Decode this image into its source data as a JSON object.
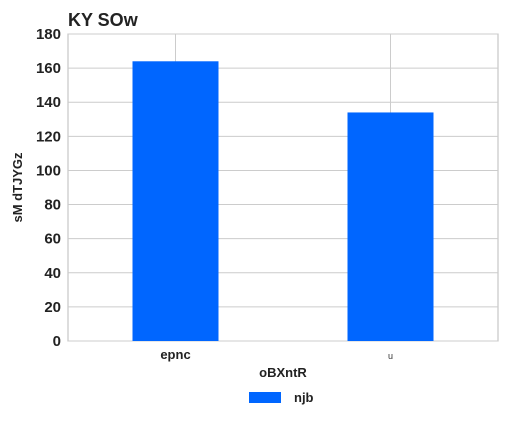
{
  "chart_data": {
    "type": "bar",
    "title": "KY   SOw",
    "categories": [
      "epnc",
      "u"
    ],
    "series": [
      {
        "name": "njb",
        "values": [
          164,
          134
        ],
        "color": "#0066ff"
      }
    ],
    "xlabel": "oBXntR",
    "ylabel": "sM dTJYGz",
    "ylim": [
      0,
      180
    ],
    "yticks": [
      0,
      20,
      40,
      60,
      80,
      100,
      120,
      140,
      160,
      180
    ],
    "grid": true,
    "legend_position": "bottom-center"
  }
}
